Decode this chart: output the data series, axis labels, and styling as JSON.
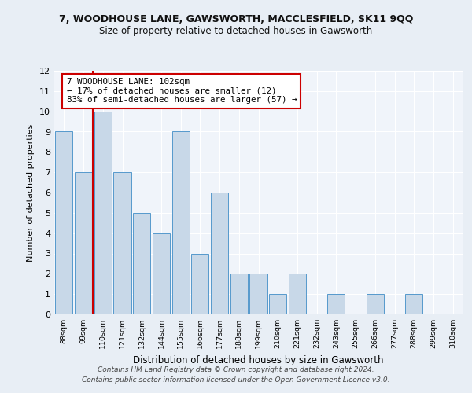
{
  "title1": "7, WOODHOUSE LANE, GAWSWORTH, MACCLESFIELD, SK11 9QQ",
  "title2": "Size of property relative to detached houses in Gawsworth",
  "xlabel": "Distribution of detached houses by size in Gawsworth",
  "ylabel": "Number of detached properties",
  "categories": [
    "88sqm",
    "99sqm",
    "110sqm",
    "121sqm",
    "132sqm",
    "144sqm",
    "155sqm",
    "166sqm",
    "177sqm",
    "188sqm",
    "199sqm",
    "210sqm",
    "221sqm",
    "232sqm",
    "243sqm",
    "255sqm",
    "266sqm",
    "277sqm",
    "288sqm",
    "299sqm",
    "310sqm"
  ],
  "values": [
    9,
    7,
    10,
    7,
    5,
    4,
    9,
    3,
    6,
    2,
    2,
    1,
    2,
    0,
    1,
    0,
    1,
    0,
    1,
    0,
    0
  ],
  "bar_color": "#c8d8e8",
  "bar_edge_color": "#5599cc",
  "subject_line_color": "#cc0000",
  "annotation_text": "7 WOODHOUSE LANE: 102sqm\n← 17% of detached houses are smaller (12)\n83% of semi-detached houses are larger (57) →",
  "annotation_box_color": "#cc0000",
  "ylim": [
    0,
    12
  ],
  "yticks": [
    0,
    1,
    2,
    3,
    4,
    5,
    6,
    7,
    8,
    9,
    10,
    11,
    12
  ],
  "footer": "Contains HM Land Registry data © Crown copyright and database right 2024.\nContains public sector information licensed under the Open Government Licence v3.0.",
  "bg_color": "#e8eef5",
  "plot_bg_color": "#f0f4fa"
}
